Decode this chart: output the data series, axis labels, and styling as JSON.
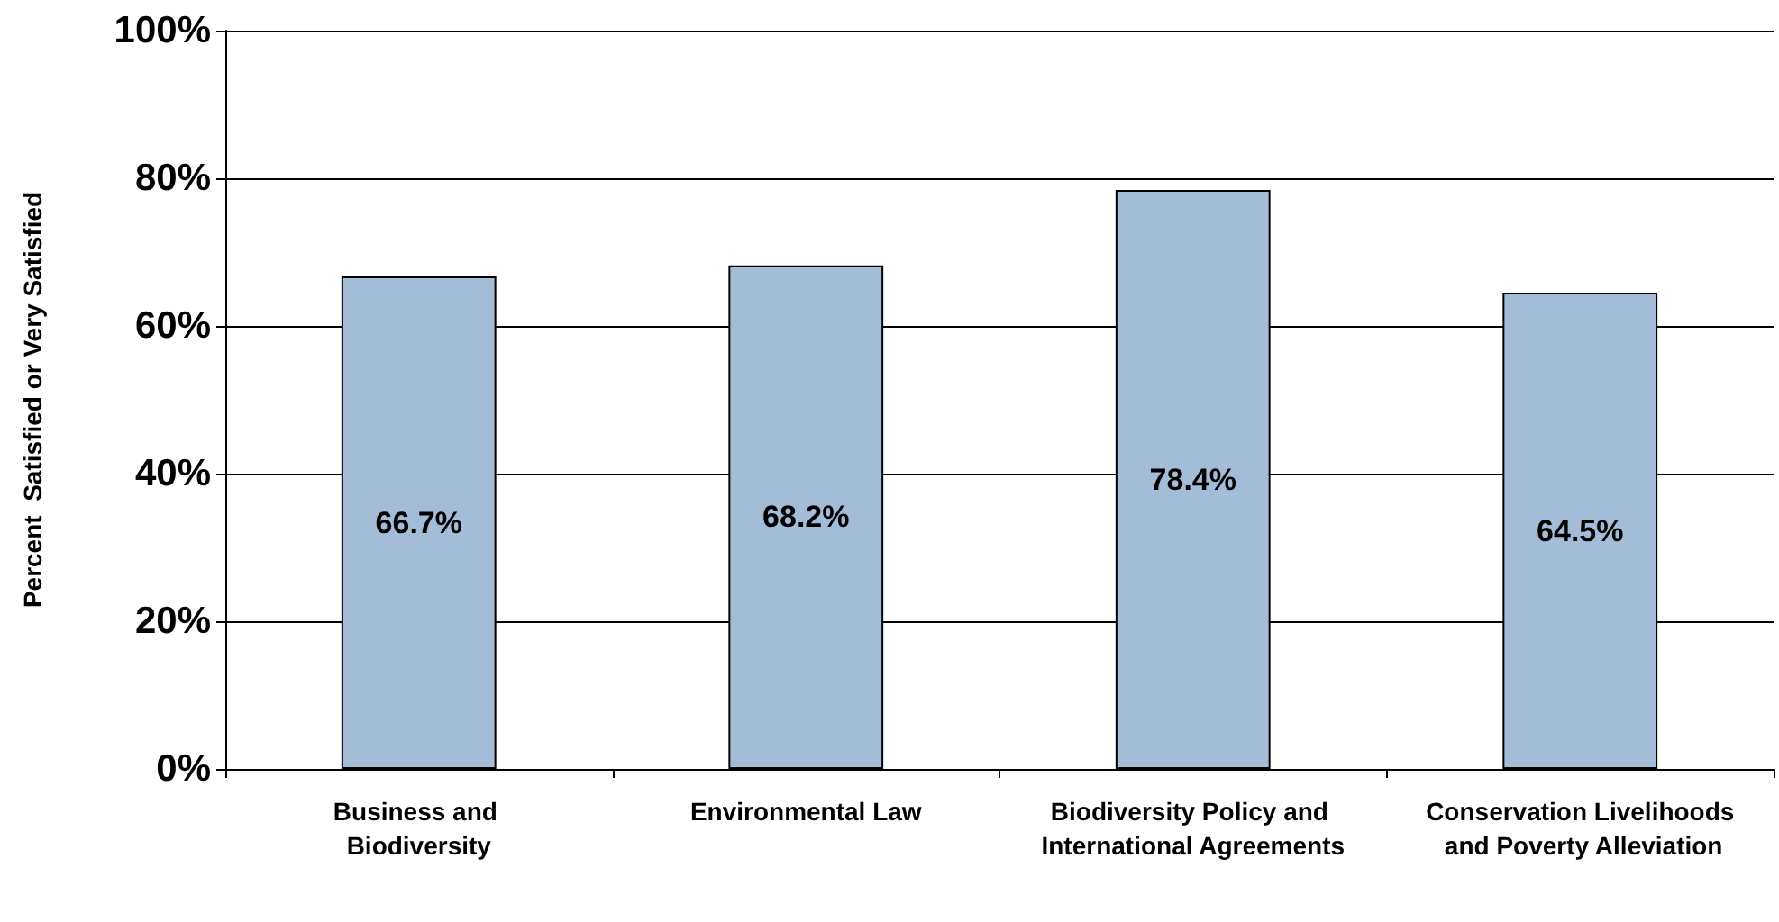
{
  "chart_data": {
    "type": "bar",
    "ylabel": "Percent  Satisfied or Very Satisfied",
    "categories": [
      "Business and Biodiversity",
      "Environmental Law",
      "Biodiversity Policy and International Agreements",
      "Conservation Livelihoods and Poverty Alleviation"
    ],
    "values": [
      66.7,
      68.2,
      78.4,
      64.5
    ],
    "value_labels": [
      "66.7%",
      "68.2%",
      "78.4%",
      "64.5%"
    ],
    "color": "#a3bdd8",
    "ylim": [
      0,
      100
    ],
    "yticks": [
      {
        "value": 0,
        "label": "0%"
      },
      {
        "value": 20,
        "label": "20%"
      },
      {
        "value": 40,
        "label": "40%"
      },
      {
        "value": 60,
        "label": "60%"
      },
      {
        "value": 80,
        "label": "80%"
      },
      {
        "value": 100,
        "label": "100%"
      }
    ],
    "grid": "y"
  }
}
